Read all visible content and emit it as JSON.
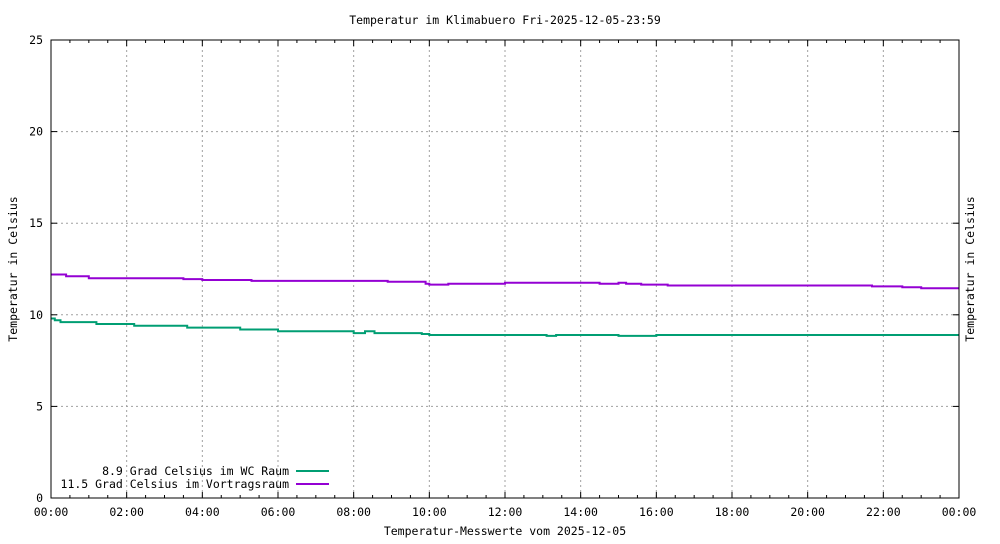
{
  "chart_data": {
    "type": "line",
    "title": "Temperatur im Klimabuero Fri-2025-12-05-23:59",
    "xlabel": "Temperatur-Messwerte vom 2025-12-05",
    "ylabel": "Temperatur in Celsius",
    "y2label": "Temperatur in Celsius",
    "xlim": [
      0,
      24
    ],
    "ylim": [
      0,
      25
    ],
    "grid": true,
    "legend_position": "bottom-left",
    "x_ticks": [
      "00:00",
      "02:00",
      "04:00",
      "06:00",
      "08:00",
      "10:00",
      "12:00",
      "14:00",
      "16:00",
      "18:00",
      "20:00",
      "22:00",
      "00:00"
    ],
    "y_ticks": [
      "0",
      "5",
      "10",
      "15",
      "20",
      "25"
    ],
    "series": [
      {
        "name": "8.9 Grad Celsius im WC Raum",
        "color": "#009e73",
        "x": [
          0.0,
          0.1,
          0.25,
          1.1,
          1.2,
          2.0,
          2.2,
          3.5,
          3.6,
          4.9,
          5.0,
          5.9,
          6.0,
          7.9,
          8.0,
          8.3,
          8.55,
          9.5,
          9.8,
          10.0,
          13.0,
          13.1,
          13.35,
          14.0,
          14.9,
          15.0,
          15.9,
          16.0,
          17.2,
          17.3,
          20.0,
          24.0
        ],
        "y": [
          9.8,
          9.7,
          9.6,
          9.6,
          9.5,
          9.5,
          9.4,
          9.4,
          9.3,
          9.3,
          9.2,
          9.2,
          9.1,
          9.1,
          9.0,
          9.1,
          9.0,
          9.0,
          8.95,
          8.9,
          8.9,
          8.85,
          8.9,
          8.9,
          8.9,
          8.85,
          8.85,
          8.9,
          8.9,
          8.9,
          8.9,
          8.9
        ]
      },
      {
        "name": "11.5 Grad Celsius im Vortragsraum",
        "color": "#9400d3",
        "x": [
          0.0,
          0.4,
          0.9,
          1.0,
          3.3,
          3.5,
          3.8,
          4.0,
          5.0,
          5.3,
          8.0,
          8.9,
          9.5,
          9.9,
          10.0,
          10.5,
          11.5,
          12.0,
          13.0,
          14.0,
          14.5,
          15.0,
          15.2,
          15.5,
          15.6,
          16.3,
          18.0,
          20.0,
          21.5,
          21.7,
          22.3,
          22.5,
          23.0,
          24.0
        ],
        "y": [
          12.2,
          12.1,
          12.1,
          12.0,
          12.0,
          11.95,
          11.95,
          11.9,
          11.9,
          11.85,
          11.85,
          11.8,
          11.8,
          11.7,
          11.65,
          11.7,
          11.7,
          11.75,
          11.75,
          11.75,
          11.7,
          11.75,
          11.7,
          11.7,
          11.65,
          11.6,
          11.6,
          11.6,
          11.6,
          11.55,
          11.55,
          11.5,
          11.45,
          11.45
        ]
      }
    ]
  }
}
